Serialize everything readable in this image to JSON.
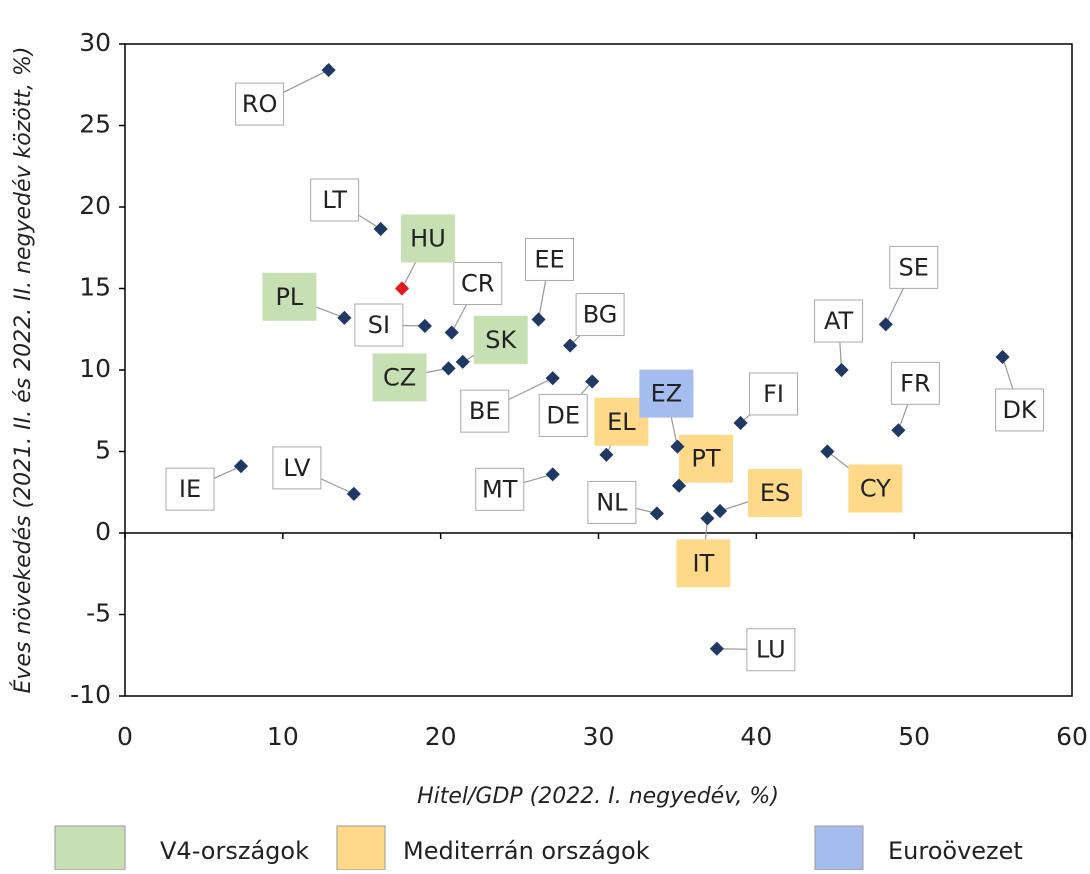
{
  "chart_data": {
    "type": "scatter",
    "xlabel": "Hitel/GDP (2022. I. negyedév, %)",
    "ylabel": "Éves növekedés (2021. II. és 2022. II. negyedév között, %)",
    "xlim": [
      0,
      60
    ],
    "xticks": [
      0,
      10,
      20,
      30,
      40,
      50,
      60
    ],
    "ylim": [
      -10,
      30
    ],
    "yticks": [
      -10,
      -5,
      0,
      5,
      10,
      15,
      20,
      25,
      30
    ],
    "marker_color": "#1f3864",
    "series": [
      {
        "color": "#ffffff",
        "labels": [
          "RO",
          "LT",
          "SI",
          "CR",
          "EE",
          "BG",
          "BE",
          "DE",
          "NL",
          "FI",
          "AT",
          "SE",
          "FR",
          "DK",
          "IE",
          "LV",
          "MT",
          "LU"
        ],
        "x": [
          12.9,
          16.2,
          19.0,
          20.7,
          26.2,
          28.2,
          27.1,
          29.6,
          33.7,
          39.0,
          45.4,
          48.2,
          49.0,
          55.6,
          7.35,
          14.5,
          27.1,
          37.5
        ],
        "values": [
          28.4,
          18.65,
          12.7,
          12.3,
          13.1,
          11.5,
          9.5,
          9.3,
          1.2,
          6.75,
          10.0,
          12.8,
          6.3,
          10.8,
          4.1,
          2.4,
          3.6,
          -7.1
        ]
      },
      {
        "name": "V4-országok",
        "color": "#c6e0b4",
        "labels": [
          "HU",
          "PL",
          "SK",
          "CZ"
        ],
        "x": [
          17.55,
          13.9,
          21.4,
          20.5
        ],
        "values": [
          15.0,
          13.2,
          10.5,
          10.1
        ],
        "marker_colors": [
          "#e31a1c",
          "#1f3864",
          "#1f3864",
          "#1f3864"
        ]
      },
      {
        "name": "Mediterrán országok",
        "color": "#ffd98a",
        "labels": [
          "EL",
          "PT",
          "IT",
          "ES",
          "CY"
        ],
        "x": [
          30.5,
          35.1,
          36.9,
          37.7,
          44.5
        ],
        "values": [
          4.8,
          2.9,
          0.9,
          1.35,
          5.0
        ]
      },
      {
        "name": "Euroövezet",
        "color": "#a4bdee",
        "labels": [
          "EZ"
        ],
        "x": [
          35.0
        ],
        "values": [
          5.3
        ]
      }
    ]
  }
}
